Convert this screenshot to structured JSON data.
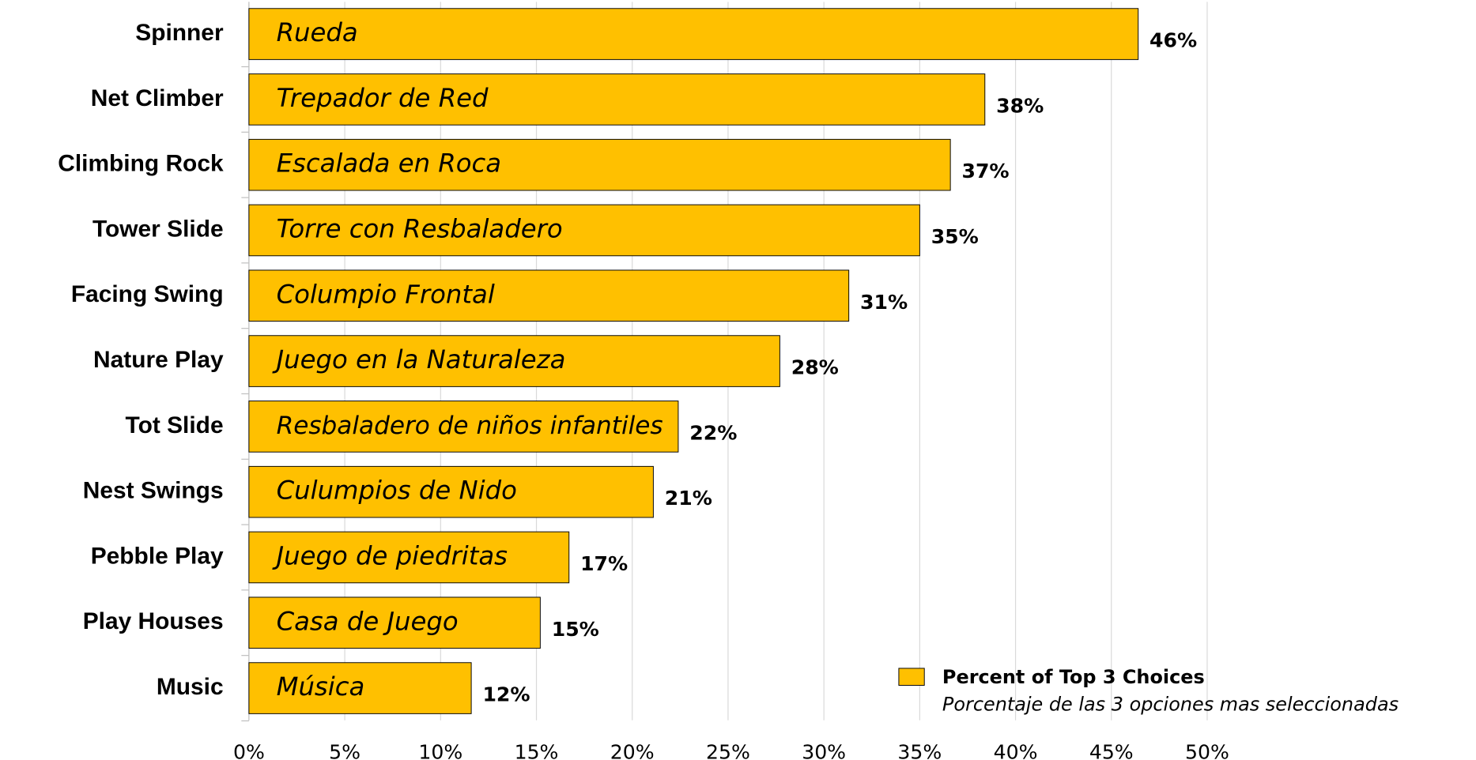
{
  "chart_data": {
    "type": "hbar",
    "categories": [
      "Spinner",
      "Net Climber",
      "Climbing Rock",
      "Tower Slide",
      "Facing Swing",
      "Nature Play",
      "Tot Slide",
      "Nest Swings",
      "Pebble Play",
      "Play Houses",
      "Music"
    ],
    "category_subtitles": [
      "Rueda",
      "Trepador de Red",
      "Escalada en Roca",
      "Torre con Resbaladero",
      "Columpio Frontal",
      "Juego en la Naturaleza",
      "Resbaladero de niños infantiles",
      "Culumpios de Nido",
      "Juego de piedritas",
      "Casa de Juego",
      "Música"
    ],
    "series": [
      {
        "name": "Percent of Top 3 Choices",
        "subtitle": "Porcentaje de las 3 opciones mas seleccionadas",
        "color": "#ffc000",
        "values": [
          46.4,
          38.4,
          36.6,
          35.0,
          31.3,
          27.7,
          22.4,
          21.1,
          16.7,
          15.2,
          11.6
        ],
        "value_labels": [
          "46%",
          "38%",
          "37%",
          "35%",
          "31%",
          "28%",
          "22%",
          "21%",
          "17%",
          "15%",
          "12%"
        ]
      }
    ],
    "xlim": [
      0,
      50
    ],
    "xticks": [
      {
        "value": 0,
        "label": "0%"
      },
      {
        "value": 5,
        "label": "5%"
      },
      {
        "value": 10,
        "label": "10%"
      },
      {
        "value": 15,
        "label": "15%"
      },
      {
        "value": 20,
        "label": "20%"
      },
      {
        "value": 25,
        "label": "25%"
      },
      {
        "value": 30,
        "label": "30%"
      },
      {
        "value": 35,
        "label": "35%"
      },
      {
        "value": 40,
        "label": "40%"
      },
      {
        "value": 45,
        "label": "45%"
      },
      {
        "value": 50,
        "label": "50%"
      }
    ],
    "grid": true,
    "legend": "lower right"
  }
}
